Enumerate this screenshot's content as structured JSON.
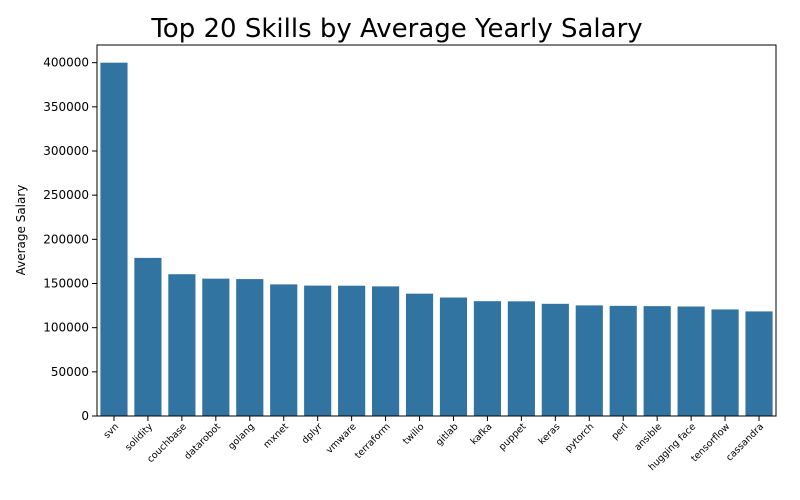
{
  "chart_data": {
    "type": "bar",
    "title": "Top 20 Skills by Average Yearly Salary",
    "xlabel": "",
    "ylabel": "Average Salary",
    "categories": [
      "svn",
      "solidity",
      "couchbase",
      "datarobot",
      "golang",
      "mxnet",
      "dplyr",
      "vmware",
      "terraform",
      "twilio",
      "gitlab",
      "kafka",
      "puppet",
      "keras",
      "pytorch",
      "perl",
      "ansible",
      "hugging face",
      "tensorflow",
      "cassandra"
    ],
    "values": [
      400000,
      179000,
      160515,
      155486,
      155000,
      149000,
      147633,
      147500,
      146734,
      138500,
      134126,
      129999,
      129820,
      127013,
      125226,
      124686,
      124370,
      123950,
      120647,
      118407
    ],
    "ylim": [
      0,
      420000
    ],
    "yticks": [
      0,
      50000,
      100000,
      150000,
      200000,
      250000,
      300000,
      350000,
      400000
    ],
    "grid": false,
    "color": "#3274a1"
  }
}
